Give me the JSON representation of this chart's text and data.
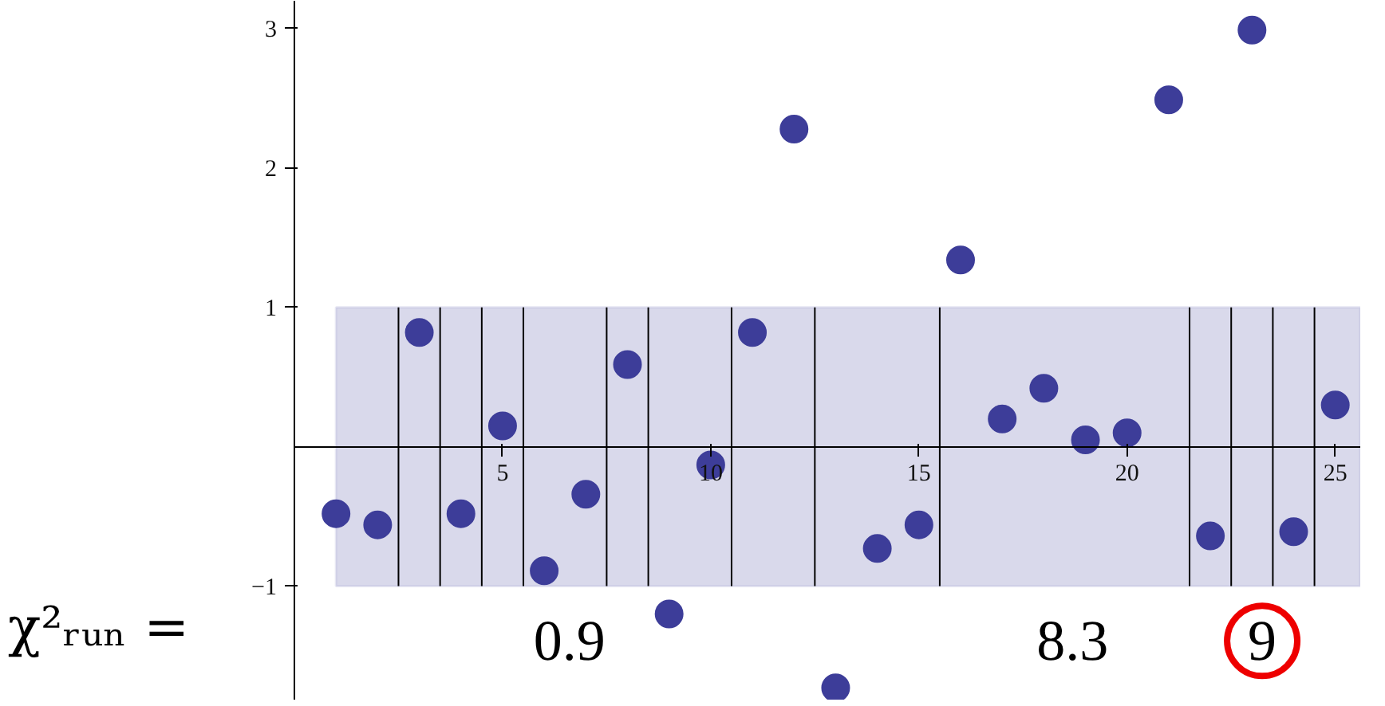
{
  "chart_data": {
    "type": "scatter",
    "x": [
      1,
      2,
      3,
      4,
      5,
      6,
      7,
      8,
      9,
      10,
      11,
      12,
      13,
      14,
      15,
      16,
      17,
      18,
      19,
      20,
      21,
      22,
      23,
      24,
      25
    ],
    "series": [
      {
        "color": "#3d3d99",
        "values": [
          -0.48,
          -0.56,
          0.82,
          -0.48,
          0.15,
          -0.89,
          -0.34,
          0.59,
          -1.2,
          -0.13,
          0.82,
          2.28,
          -1.73,
          -0.73,
          -0.56,
          1.34,
          0.2,
          0.42,
          0.05,
          0.1,
          2.49,
          -0.64,
          2.99,
          -0.61,
          0.3
        ]
      }
    ],
    "marker": "circle",
    "grid": false,
    "xlim": [
      0,
      25.6
    ],
    "ylim": [
      -1.82,
      3.2
    ],
    "xticks": [
      5,
      10,
      15,
      20,
      25
    ],
    "yticks": [
      -1,
      1,
      2,
      3
    ],
    "bands": [
      {
        "axis": "y",
        "from": -1,
        "to": 1,
        "color": "#d9d9eb"
      }
    ],
    "ref_lines": [
      {
        "axis": "x",
        "value": 2.5
      },
      {
        "axis": "x",
        "value": 3.5
      },
      {
        "axis": "x",
        "value": 4.5
      },
      {
        "axis": "x",
        "value": 5.5
      },
      {
        "axis": "x",
        "value": 7.5
      },
      {
        "axis": "x",
        "value": 8.5
      },
      {
        "axis": "x",
        "value": 10.5
      },
      {
        "axis": "x",
        "value": 12.5
      },
      {
        "axis": "x",
        "value": 15.5
      },
      {
        "axis": "x",
        "value": 21.5
      },
      {
        "axis": "x",
        "value": 22.5
      },
      {
        "axis": "x",
        "value": 23.5
      },
      {
        "axis": "x",
        "value": 24.5
      }
    ],
    "annotations": [
      "χ²ᵣᵤₙ =",
      "0.9",
      "8.3",
      "9"
    ]
  }
}
